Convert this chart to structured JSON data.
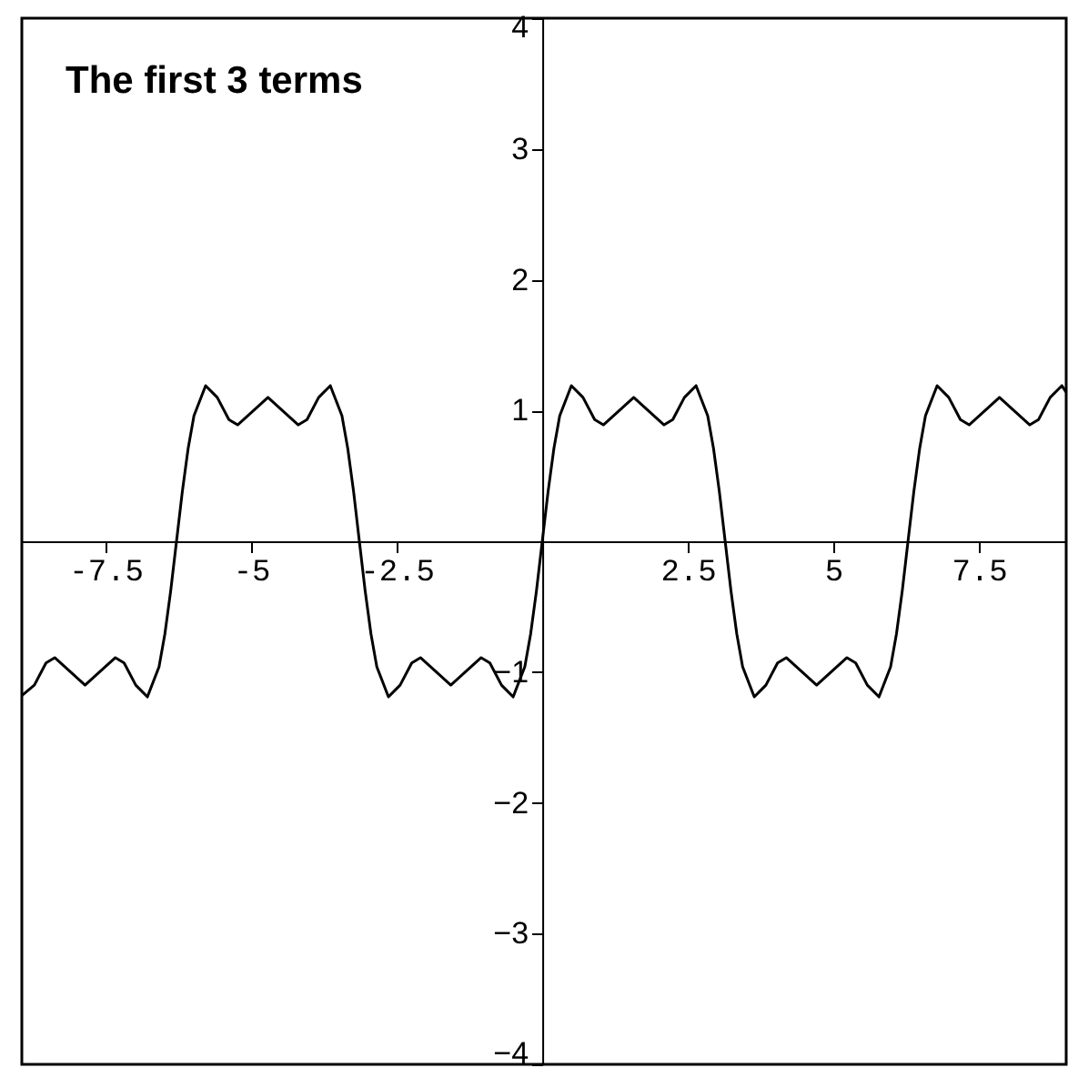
{
  "chart_data": {
    "type": "line",
    "title": "The first 3 terms",
    "x": [
      -8.94,
      -8.725,
      -8.525,
      -8.375,
      -8.125,
      -7.854,
      -7.583,
      -7.333,
      -7.183,
      -6.983,
      -6.783,
      -6.583,
      -6.483,
      -6.383,
      -6.283,
      -6.183,
      -6.083,
      -5.983,
      -5.783,
      -5.583,
      -5.383,
      -5.233,
      -4.983,
      -4.712,
      -4.441,
      -4.191,
      -4.041,
      -3.841,
      -3.641,
      -3.441,
      -3.341,
      -3.241,
      -3.142,
      -3.042,
      -2.942,
      -2.842,
      -2.642,
      -2.442,
      -2.242,
      -2.092,
      -1.842,
      -1.571,
      -1.3,
      -1.05,
      -0.9,
      -0.7,
      -0.5,
      -0.3,
      -0.2,
      -0.1,
      0,
      0.1,
      0.2,
      0.3,
      0.5,
      0.7,
      0.9,
      1.05,
      1.3,
      1.571,
      1.842,
      2.092,
      2.242,
      2.442,
      2.642,
      2.842,
      2.942,
      3.042,
      3.142,
      3.242,
      3.342,
      3.442,
      3.642,
      3.842,
      4.042,
      4.192,
      4.442,
      4.713,
      4.984,
      5.234,
      5.384,
      5.584,
      5.784,
      5.984,
      6.084,
      6.184,
      6.283,
      6.383,
      6.483,
      6.583,
      6.783,
      6.983,
      7.183,
      7.333,
      7.583,
      7.854,
      8.125,
      8.375,
      8.525,
      8.725,
      8.925,
      9.0
    ],
    "series": [
      {
        "color": "#000000",
        "values": [
          -1.18,
          -1.1,
          -0.93,
          -0.89,
          -0.99,
          -1.1,
          -0.99,
          -0.89,
          -0.93,
          -1.1,
          -1.19,
          -0.96,
          -0.71,
          -0.38,
          0,
          0.38,
          0.71,
          0.96,
          1.19,
          1.1,
          0.93,
          0.89,
          0.99,
          1.1,
          0.99,
          0.89,
          0.93,
          1.1,
          1.19,
          0.96,
          0.71,
          0.38,
          0,
          -0.38,
          -0.71,
          -0.96,
          -1.19,
          -1.1,
          -0.93,
          -0.89,
          -0.99,
          -1.1,
          -0.99,
          -0.89,
          -0.93,
          -1.1,
          -1.19,
          -0.96,
          -0.71,
          -0.38,
          0,
          0.38,
          0.71,
          0.96,
          1.19,
          1.1,
          0.93,
          0.89,
          0.99,
          1.1,
          0.99,
          0.89,
          0.93,
          1.1,
          1.19,
          0.96,
          0.71,
          0.38,
          0,
          -0.38,
          -0.71,
          -0.96,
          -1.19,
          -1.1,
          -0.93,
          -0.89,
          -0.99,
          -1.1,
          -0.99,
          -0.89,
          -0.93,
          -1.1,
          -1.19,
          -0.96,
          -0.71,
          -0.38,
          0,
          0.38,
          0.71,
          0.96,
          1.19,
          1.1,
          0.93,
          0.89,
          0.99,
          1.1,
          0.99,
          0.89,
          0.93,
          1.1,
          1.19,
          1.14
        ]
      }
    ],
    "xlim": [
      -8.94,
      9.0
    ],
    "ylim": [
      -4,
      4
    ],
    "xticks": [
      -7.5,
      -5,
      -2.5,
      2.5,
      5,
      7.5
    ],
    "yticks": [
      -4,
      -3,
      -2,
      -1,
      1,
      2,
      3,
      4
    ],
    "grid": false,
    "marker": "none",
    "line_style": "solid"
  }
}
